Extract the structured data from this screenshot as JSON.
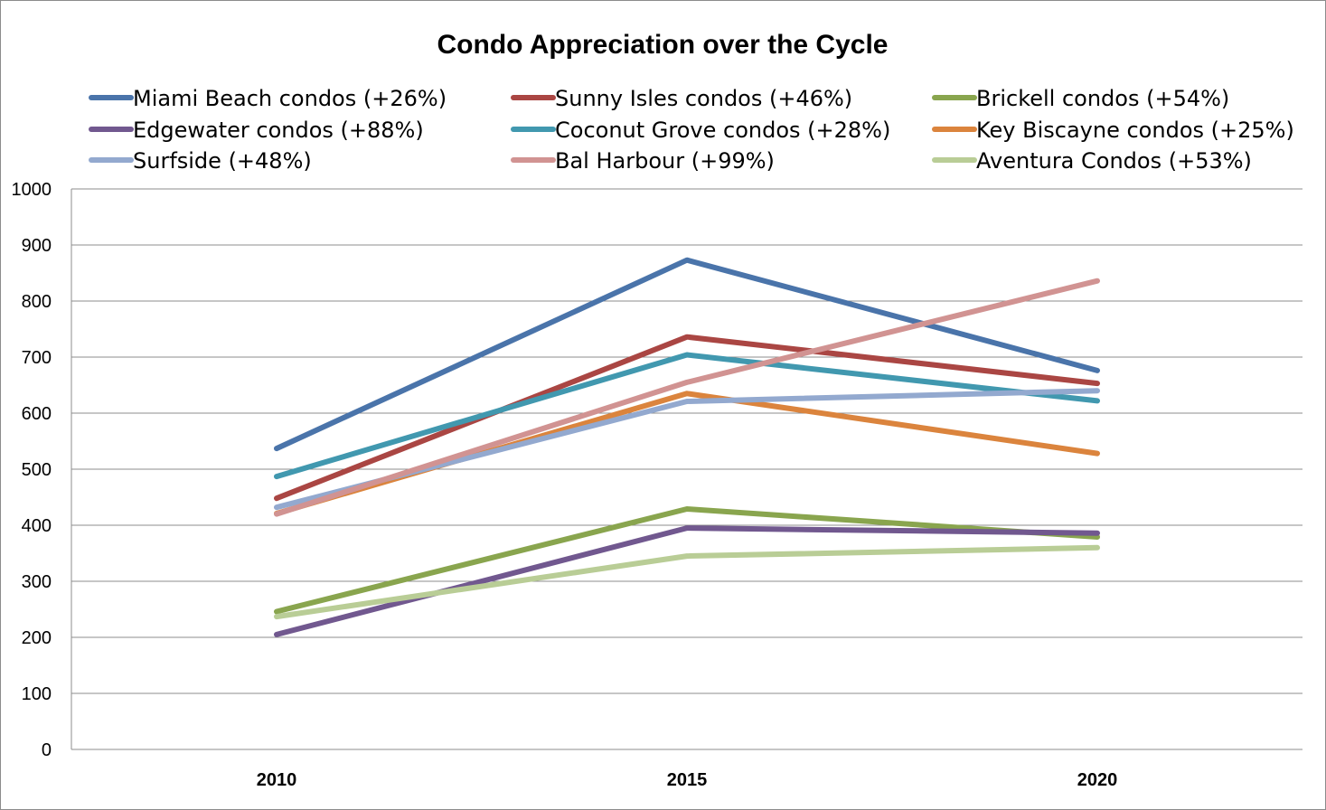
{
  "chart_data": {
    "type": "line",
    "title": "Condo Appreciation over the Cycle",
    "xlabel": "",
    "ylabel": "",
    "categories": [
      "2010",
      "2015",
      "2020"
    ],
    "ylim": [
      0,
      1000
    ],
    "yticks": [
      "0",
      "100",
      "200",
      "300",
      "400",
      "500",
      "600",
      "700",
      "800",
      "900",
      "1000"
    ],
    "grid": true,
    "legend_position": "top",
    "series": [
      {
        "name": "Miami Beach condos (+26%)",
        "color": "#4a74aa",
        "values": [
          537,
          873,
          676
        ]
      },
      {
        "name": "Sunny Isles condos (+46%)",
        "color": "#aa4643",
        "values": [
          448,
          736,
          653
        ]
      },
      {
        "name": "Brickell condos (+54%)",
        "color": "#89a54e",
        "values": [
          246,
          429,
          379
        ]
      },
      {
        "name": "Edgewater condos (+88%)",
        "color": "#71588f",
        "values": [
          205,
          395,
          386
        ]
      },
      {
        "name": "Coconut Grove condos (+28%)",
        "color": "#4198af",
        "values": [
          487,
          704,
          622
        ]
      },
      {
        "name": "Key Biscayne condos (+25%)",
        "color": "#db843d",
        "values": [
          421,
          635,
          528
        ]
      },
      {
        "name": "Surfside (+48%)",
        "color": "#93a9cf",
        "values": [
          432,
          621,
          640
        ]
      },
      {
        "name": "Bal Harbour (+99%)",
        "color": "#d19392",
        "values": [
          420,
          655,
          836
        ]
      },
      {
        "name": "Aventura Condos (+53%)",
        "color": "#b9cd96",
        "values": [
          237,
          345,
          360
        ]
      }
    ]
  }
}
